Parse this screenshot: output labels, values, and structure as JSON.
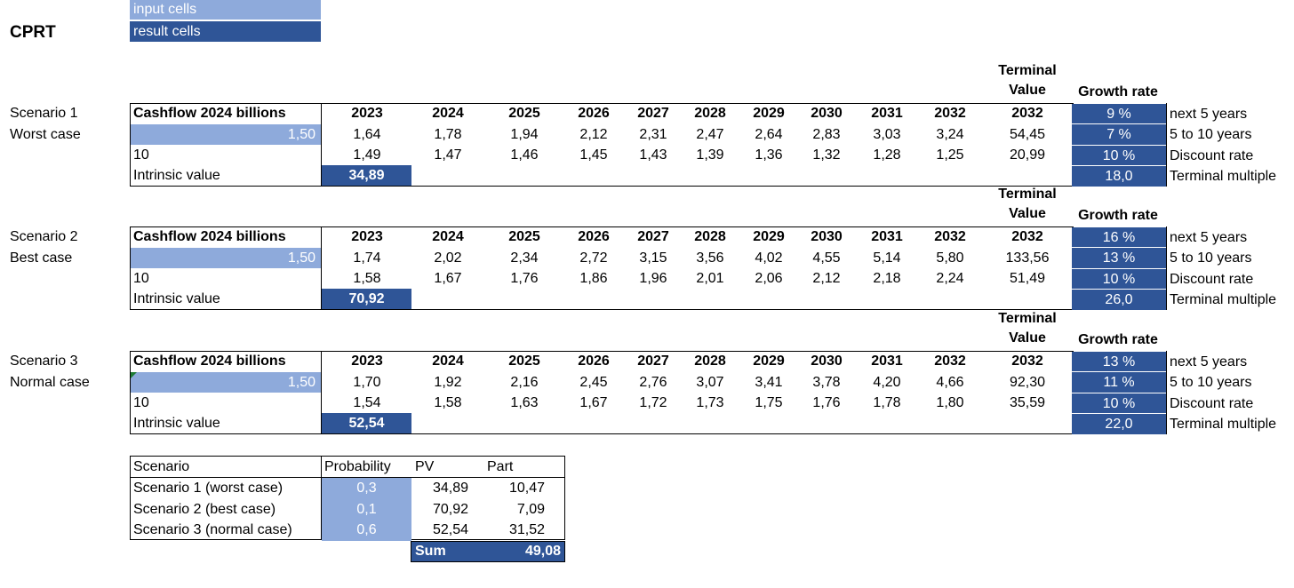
{
  "legend": {
    "input_label": "input cells",
    "result_label": "result cells"
  },
  "ticker": "CPRT",
  "header_row": {
    "cashflow_label": "Cashflow 2024 billions",
    "years": [
      "2023",
      "2024",
      "2025",
      "2026",
      "2027",
      "2028",
      "2029",
      "2030",
      "2031",
      "2032"
    ],
    "terminal_year": "2032",
    "terminal_label_1": "Terminal",
    "terminal_label_2": "Value",
    "growth_label": "Growth rate"
  },
  "param_labels": [
    "next 5 years",
    "5 to 10 years",
    "Discount rate",
    "Terminal multiple"
  ],
  "intrinsic_label": "Intrinsic value",
  "scenarios": [
    {
      "name": "Scenario 1",
      "case": "Worst case",
      "cashflow": "1,50",
      "years_input": "10",
      "intrinsic": "34,89",
      "future": [
        "1,64",
        "1,78",
        "1,94",
        "2,12",
        "2,31",
        "2,47",
        "2,64",
        "2,83",
        "3,03",
        "3,24"
      ],
      "future_tv": "54,45",
      "discounted": [
        "1,49",
        "1,47",
        "1,46",
        "1,45",
        "1,43",
        "1,39",
        "1,36",
        "1,32",
        "1,28",
        "1,25"
      ],
      "discounted_tv": "20,99",
      "params": [
        "9 %",
        "7 %",
        "10 %",
        "18,0"
      ]
    },
    {
      "name": "Scenario 2",
      "case": "Best case",
      "cashflow": "1,50",
      "years_input": "10",
      "intrinsic": "70,92",
      "future": [
        "1,74",
        "2,02",
        "2,34",
        "2,72",
        "3,15",
        "3,56",
        "4,02",
        "4,55",
        "5,14",
        "5,80"
      ],
      "future_tv": "133,56",
      "discounted": [
        "1,58",
        "1,67",
        "1,76",
        "1,86",
        "1,96",
        "2,01",
        "2,06",
        "2,12",
        "2,18",
        "2,24"
      ],
      "discounted_tv": "51,49",
      "params": [
        "16 %",
        "13 %",
        "10 %",
        "26,0"
      ]
    },
    {
      "name": "Scenario 3",
      "case": "Normal case",
      "cashflow": "1,50",
      "years_input": "10",
      "intrinsic": "52,54",
      "future": [
        "1,70",
        "1,92",
        "2,16",
        "2,45",
        "2,76",
        "3,07",
        "3,41",
        "3,78",
        "4,20",
        "4,66"
      ],
      "future_tv": "92,30",
      "discounted": [
        "1,54",
        "1,58",
        "1,63",
        "1,67",
        "1,72",
        "1,73",
        "1,75",
        "1,76",
        "1,78",
        "1,80"
      ],
      "discounted_tv": "35,59",
      "params": [
        "13 %",
        "11 %",
        "10 %",
        "22,0"
      ]
    }
  ],
  "summary": {
    "headers": [
      "Scenario",
      "Probability",
      "PV",
      "Part"
    ],
    "rows": [
      {
        "scenario": "Scenario 1 (worst case)",
        "probability": "0,3",
        "pv": "34,89",
        "part": "10,47"
      },
      {
        "scenario": "Scenario 2 (best case)",
        "probability": "0,1",
        "pv": "70,92",
        "part": "7,09"
      },
      {
        "scenario": "Scenario 3 (normal case)",
        "probability": "0,6",
        "pv": "52,54",
        "part": "31,52"
      }
    ],
    "sum_label": "Sum",
    "sum_value": "49,08"
  },
  "colors": {
    "input": "#8eaadb",
    "result": "#2f5597"
  }
}
